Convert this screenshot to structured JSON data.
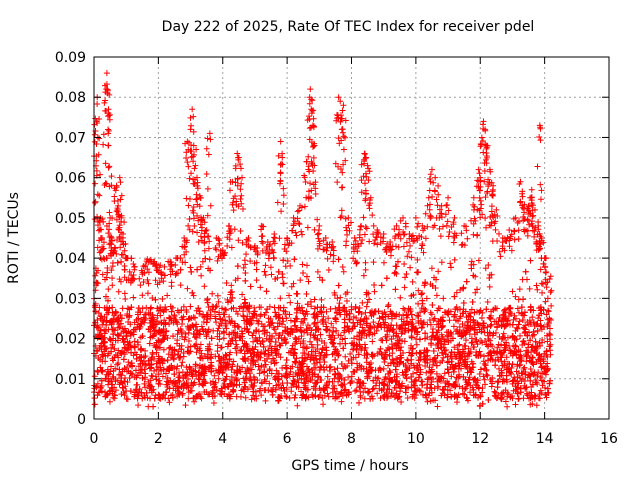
{
  "chart_data": {
    "type": "scatter",
    "title": "Day 222 of 2025, Rate Of TEC Index for receiver pdel",
    "xlabel": "GPS time / hours",
    "ylabel": "ROTI / TECUs",
    "xlim": [
      0,
      16
    ],
    "ylim": [
      0,
      0.09
    ],
    "x_ticks": [
      0,
      2,
      4,
      6,
      8,
      10,
      12,
      14,
      16
    ],
    "x_tick_labels": [
      "0",
      "2",
      "4",
      "6",
      "8",
      "10",
      "12",
      "14",
      "16"
    ],
    "y_ticks": [
      0,
      0.01,
      0.02,
      0.03,
      0.04,
      0.05,
      0.06,
      0.07,
      0.08,
      0.09
    ],
    "y_tick_labels": [
      "0",
      "0.01",
      "0.02",
      "0.03",
      "0.04",
      "0.05",
      "0.06",
      "0.07",
      "0.08",
      "0.09"
    ],
    "grid": true,
    "marker": "+",
    "color": "#ff0000",
    "series": [
      {
        "name": "ROTI",
        "points": [
          [
            0.05,
            0.032
          ],
          [
            0.05,
            0.054
          ],
          [
            0.08,
            0.074
          ],
          [
            0.1,
            0.08
          ],
          [
            0.12,
            0.07
          ],
          [
            0.2,
            0.05
          ],
          [
            0.25,
            0.045
          ],
          [
            0.3,
            0.04
          ],
          [
            0.38,
            0.082
          ],
          [
            0.4,
            0.086
          ],
          [
            0.42,
            0.081
          ],
          [
            0.45,
            0.077
          ],
          [
            0.5,
            0.05
          ],
          [
            0.55,
            0.045
          ],
          [
            0.6,
            0.042
          ],
          [
            0.7,
            0.058
          ],
          [
            0.75,
            0.053
          ],
          [
            0.8,
            0.06
          ],
          [
            0.85,
            0.05
          ],
          [
            0.9,
            0.046
          ],
          [
            1.0,
            0.04
          ],
          [
            1.2,
            0.035
          ],
          [
            1.5,
            0.036
          ],
          [
            1.7,
            0.039
          ],
          [
            1.9,
            0.038
          ],
          [
            2.1,
            0.035
          ],
          [
            2.4,
            0.038
          ],
          [
            2.6,
            0.04
          ],
          [
            2.8,
            0.045
          ],
          [
            2.9,
            0.069
          ],
          [
            3.0,
            0.072
          ],
          [
            3.05,
            0.077
          ],
          [
            3.1,
            0.068
          ],
          [
            3.15,
            0.063
          ],
          [
            3.2,
            0.06
          ],
          [
            3.3,
            0.055
          ],
          [
            3.4,
            0.05
          ],
          [
            3.5,
            0.047
          ],
          [
            3.6,
            0.071
          ],
          [
            3.8,
            0.045
          ],
          [
            4.0,
            0.042
          ],
          [
            4.2,
            0.048
          ],
          [
            4.3,
            0.059
          ],
          [
            4.45,
            0.066
          ],
          [
            4.5,
            0.065
          ],
          [
            4.6,
            0.06
          ],
          [
            4.8,
            0.045
          ],
          [
            5.0,
            0.043
          ],
          [
            5.2,
            0.048
          ],
          [
            5.4,
            0.044
          ],
          [
            5.6,
            0.046
          ],
          [
            5.8,
            0.069
          ],
          [
            5.85,
            0.065
          ],
          [
            6.0,
            0.045
          ],
          [
            6.2,
            0.05
          ],
          [
            6.4,
            0.053
          ],
          [
            6.6,
            0.064
          ],
          [
            6.7,
            0.08
          ],
          [
            6.72,
            0.082
          ],
          [
            6.75,
            0.077
          ],
          [
            6.8,
            0.073
          ],
          [
            6.85,
            0.068
          ],
          [
            7.0,
            0.048
          ],
          [
            7.2,
            0.045
          ],
          [
            7.4,
            0.044
          ],
          [
            7.6,
            0.08
          ],
          [
            7.65,
            0.079
          ],
          [
            7.7,
            0.072
          ],
          [
            7.75,
            0.078
          ],
          [
            7.9,
            0.05
          ],
          [
            8.1,
            0.045
          ],
          [
            8.3,
            0.048
          ],
          [
            8.4,
            0.066
          ],
          [
            8.45,
            0.065
          ],
          [
            8.5,
            0.063
          ],
          [
            8.6,
            0.055
          ],
          [
            8.8,
            0.047
          ],
          [
            9.0,
            0.046
          ],
          [
            9.2,
            0.044
          ],
          [
            9.4,
            0.048
          ],
          [
            9.6,
            0.05
          ],
          [
            9.8,
            0.046
          ],
          [
            10.0,
            0.05
          ],
          [
            10.2,
            0.048
          ],
          [
            10.4,
            0.055
          ],
          [
            10.5,
            0.062
          ],
          [
            10.6,
            0.06
          ],
          [
            10.8,
            0.053
          ],
          [
            11.0,
            0.055
          ],
          [
            11.2,
            0.05
          ],
          [
            11.5,
            0.048
          ],
          [
            11.8,
            0.055
          ],
          [
            11.95,
            0.062
          ],
          [
            12.0,
            0.06
          ],
          [
            12.05,
            0.07
          ],
          [
            12.1,
            0.074
          ],
          [
            12.15,
            0.072
          ],
          [
            12.2,
            0.068
          ],
          [
            12.3,
            0.062
          ],
          [
            12.4,
            0.058
          ],
          [
            12.5,
            0.052
          ],
          [
            12.7,
            0.045
          ],
          [
            12.9,
            0.047
          ],
          [
            13.1,
            0.05
          ],
          [
            13.25,
            0.059
          ],
          [
            13.3,
            0.056
          ],
          [
            13.5,
            0.053
          ],
          [
            13.55,
            0.055
          ],
          [
            13.6,
            0.057
          ],
          [
            13.7,
            0.052
          ],
          [
            13.8,
            0.048
          ],
          [
            13.85,
            0.073
          ],
          [
            13.9,
            0.045
          ],
          [
            14.0,
            0.04
          ],
          [
            14.1,
            0.03
          ],
          [
            14.15,
            0.025
          ]
        ],
        "band": {
          "x_start": 0.0,
          "x_end": 14.2,
          "baseline_min": 0.005,
          "baseline_max": 0.028,
          "typical_max": 0.04,
          "min_observed": 0.003
        }
      }
    ]
  }
}
